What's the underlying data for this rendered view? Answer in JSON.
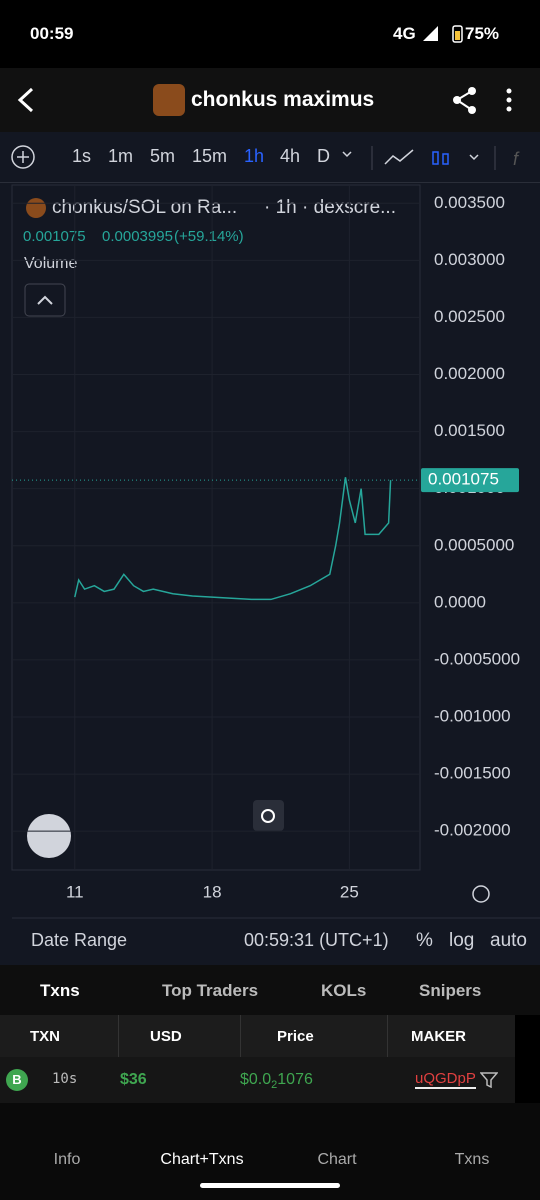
{
  "status_bar": {
    "time": "00:59",
    "network": "4G",
    "battery": "75%"
  },
  "header": {
    "title": "chonkus maximus"
  },
  "toolbar": {
    "intervals": [
      "1s",
      "1m",
      "5m",
      "15m",
      "1h",
      "4h",
      "D"
    ],
    "active_interval": 4
  },
  "chart": {
    "type": "line",
    "legend": {
      "pair": "chonkus/SOL on Ra...",
      "source": "· 1h · dexscre...",
      "price": "0.001075",
      "change": "0.0003995",
      "change_pct": "(+59.14%)",
      "volume": "Volume"
    },
    "color": "#26a69a",
    "x": [
      11.0,
      11.2,
      11.5,
      12.0,
      12.5,
      13.0,
      13.5,
      14.0,
      14.5,
      15.0,
      16.0,
      17.0,
      18.0,
      19.0,
      20.0,
      21.0,
      22.0,
      23.0,
      23.5,
      24.0,
      24.3,
      24.5,
      24.8,
      25.0,
      25.3,
      25.6,
      25.8,
      26.1,
      26.5,
      27.0,
      27.1
    ],
    "values": [
      5e-05,
      0.0002,
      0.00012,
      0.00015,
      0.0001,
      0.00012,
      0.00025,
      0.00015,
      0.0001,
      0.00012,
      8e-05,
      6e-05,
      5e-05,
      4e-05,
      3e-05,
      3e-05,
      8e-05,
      0.00015,
      0.0002,
      0.00025,
      0.0005,
      0.0007,
      0.0011,
      0.0009,
      0.0007,
      0.001,
      0.0006,
      0.0006,
      0.0006,
      0.0007,
      0.001075
    ],
    "xlim": [
      7.8,
      28.6
    ],
    "xticks": [
      11,
      18,
      25
    ],
    "ylim": [
      -0.00234,
      0.00366
    ],
    "yticks": [
      {
        "value": 0.0035,
        "label": "0.003500"
      },
      {
        "value": 0.003,
        "label": "0.003000"
      },
      {
        "value": 0.0025,
        "label": "0.002500"
      },
      {
        "value": 0.002,
        "label": "0.002000"
      },
      {
        "value": 0.0015,
        "label": "0.001500"
      },
      {
        "value": 0.001,
        "label": "0.001000"
      },
      {
        "value": 0.0005,
        "label": "0.0005000"
      },
      {
        "value": 0,
        "label": "0.0000"
      },
      {
        "value": -0.0005,
        "label": "-0.0005000"
      },
      {
        "value": -0.001,
        "label": "-0.001000"
      },
      {
        "value": -0.0015,
        "label": "-0.001500"
      },
      {
        "value": -0.002,
        "label": "-0.002000"
      }
    ],
    "last_price": {
      "value": 0.001075,
      "label": "0.001075"
    },
    "grid": true
  },
  "chart_footer": {
    "date_range": "Date Range",
    "clock": "00:59:31 (UTC+1)",
    "percent": "%",
    "log": "log",
    "auto": "auto"
  },
  "tabs": [
    "Txns",
    "Top Traders",
    "KOLs",
    "Snipers"
  ],
  "table": {
    "headers": [
      "TXN",
      "USD",
      "Price",
      "MAKER"
    ],
    "rows": [
      {
        "side": "B",
        "age": "10s",
        "usd": "$36",
        "price_prefix": "$0.0",
        "price_zeros": "2",
        "price_digits": "1076",
        "maker": "uQGDpP"
      }
    ]
  },
  "nav": [
    "Info",
    "Chart+Txns",
    "Chart",
    "Txns"
  ]
}
